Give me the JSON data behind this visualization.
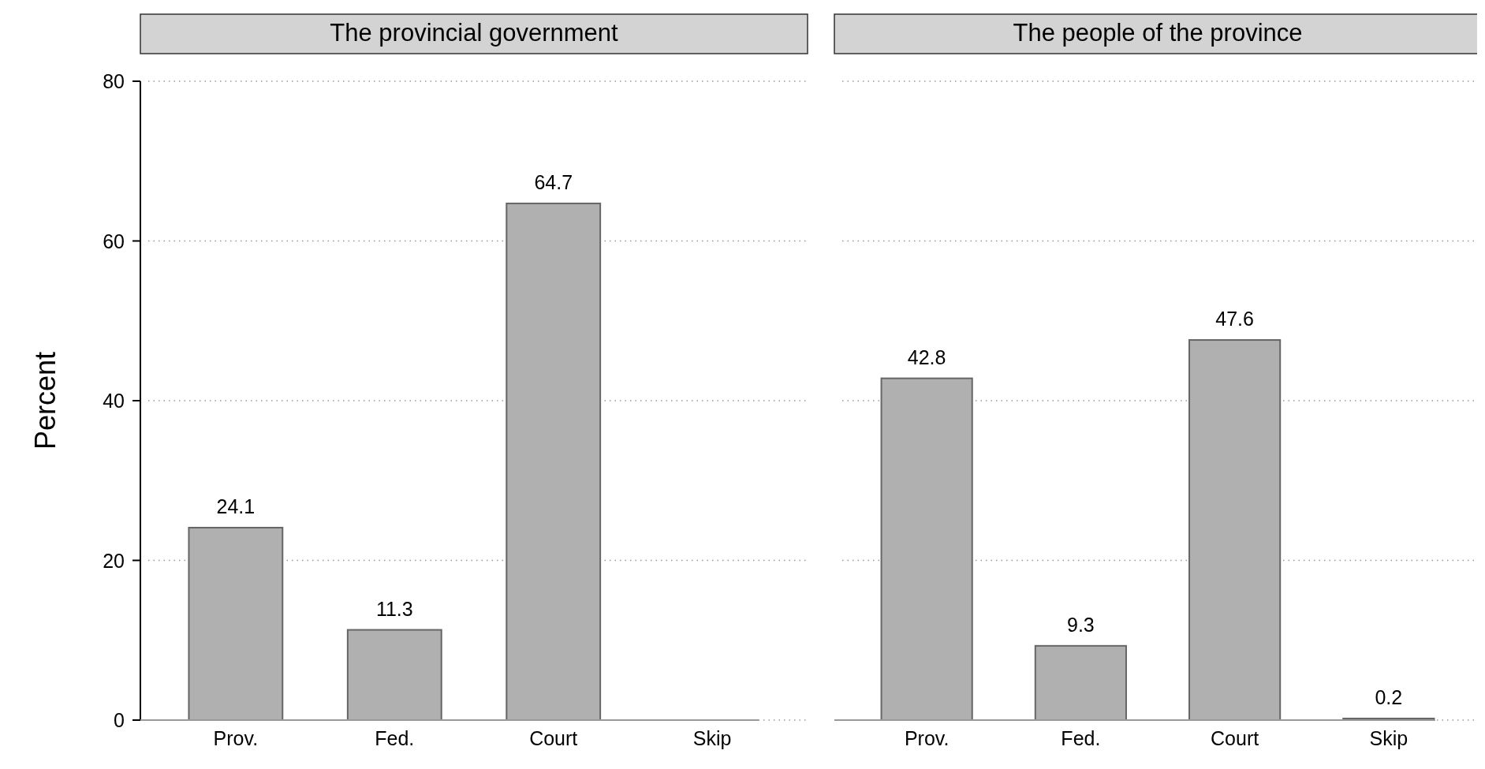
{
  "chart_data": [
    {
      "type": "bar",
      "title": "The provincial government",
      "ylabel": "Percent",
      "categories": [
        "Prov.",
        "Fed.",
        "Court",
        "Skip"
      ],
      "values": [
        24.1,
        11.3,
        64.7,
        null
      ],
      "color": "#b0b0b0",
      "ylim": [
        0,
        80
      ],
      "yticks": [
        0,
        20,
        40,
        60,
        80
      ],
      "grid": "y",
      "data_labels": true
    },
    {
      "type": "bar",
      "title": "The people of the province",
      "categories": [
        "Prov.",
        "Fed.",
        "Court",
        "Skip"
      ],
      "values": [
        42.8,
        9.3,
        47.6,
        0.2
      ],
      "color": "#b0b0b0",
      "ylim": [
        0,
        80
      ],
      "yticks": [
        0,
        20,
        40,
        60,
        80
      ],
      "grid": "y",
      "data_labels": true,
      "tick_labels": "x"
    }
  ]
}
